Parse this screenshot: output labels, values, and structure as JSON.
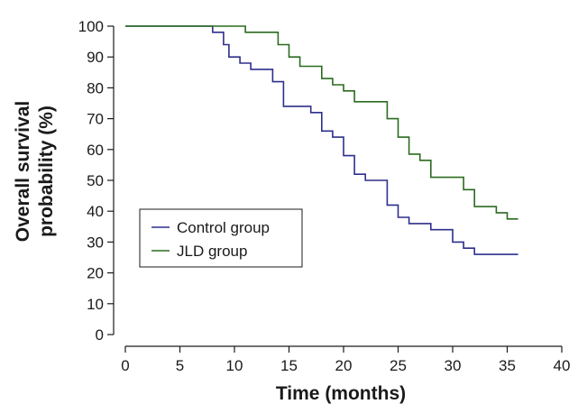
{
  "chart_data": {
    "type": "line",
    "step": true,
    "xlabel": "Time (months)",
    "ylabel_lines": [
      "Overall survival",
      "probability (%)"
    ],
    "xlim": [
      0,
      40
    ],
    "ylim": [
      0,
      100
    ],
    "xticks": [
      0,
      5,
      10,
      15,
      20,
      25,
      30,
      35,
      40
    ],
    "yticks": [
      0,
      10,
      20,
      30,
      40,
      50,
      60,
      70,
      80,
      90,
      100
    ],
    "grid": false,
    "legend_position": "center-left",
    "series": [
      {
        "name": "Control group",
        "color": "#2e2e8c",
        "points": [
          [
            0,
            100
          ],
          [
            8,
            100
          ],
          [
            8,
            98
          ],
          [
            9,
            98
          ],
          [
            9,
            94
          ],
          [
            9.5,
            94
          ],
          [
            9.5,
            90
          ],
          [
            10.5,
            90
          ],
          [
            10.5,
            88
          ],
          [
            11.5,
            88
          ],
          [
            11.5,
            86
          ],
          [
            13.5,
            86
          ],
          [
            13.5,
            82
          ],
          [
            14.5,
            82
          ],
          [
            14.5,
            74
          ],
          [
            17,
            74
          ],
          [
            17,
            72
          ],
          [
            18,
            72
          ],
          [
            18,
            66
          ],
          [
            19,
            66
          ],
          [
            19,
            64
          ],
          [
            20,
            64
          ],
          [
            20,
            58
          ],
          [
            21,
            58
          ],
          [
            21,
            52
          ],
          [
            22,
            52
          ],
          [
            22,
            50
          ],
          [
            24,
            50
          ],
          [
            24,
            42
          ],
          [
            25,
            42
          ],
          [
            25,
            38
          ],
          [
            26,
            38
          ],
          [
            26,
            36
          ],
          [
            28,
            36
          ],
          [
            28,
            34
          ],
          [
            30,
            34
          ],
          [
            30,
            30
          ],
          [
            31,
            30
          ],
          [
            31,
            28
          ],
          [
            32,
            28
          ],
          [
            32,
            26
          ],
          [
            36,
            26
          ]
        ]
      },
      {
        "name": "JLD group",
        "color": "#2a6b1e",
        "points": [
          [
            0,
            100
          ],
          [
            11,
            100
          ],
          [
            11,
            98
          ],
          [
            14,
            98
          ],
          [
            14,
            94
          ],
          [
            15,
            94
          ],
          [
            15,
            90
          ],
          [
            16,
            90
          ],
          [
            16,
            87
          ],
          [
            18,
            87
          ],
          [
            18,
            83
          ],
          [
            19,
            83
          ],
          [
            19,
            81
          ],
          [
            20,
            81
          ],
          [
            20,
            79
          ],
          [
            21,
            79
          ],
          [
            21,
            75.5
          ],
          [
            24,
            75.5
          ],
          [
            24,
            70
          ],
          [
            25,
            70
          ],
          [
            25,
            64
          ],
          [
            26,
            64
          ],
          [
            26,
            58.5
          ],
          [
            27,
            58.5
          ],
          [
            27,
            56.5
          ],
          [
            28,
            56.5
          ],
          [
            28,
            51
          ],
          [
            31,
            51
          ],
          [
            31,
            47
          ],
          [
            32,
            47
          ],
          [
            32,
            41.5
          ],
          [
            34,
            41.5
          ],
          [
            34,
            39.5
          ],
          [
            35,
            39.5
          ],
          [
            35,
            37.5
          ],
          [
            36,
            37.5
          ]
        ]
      }
    ]
  }
}
